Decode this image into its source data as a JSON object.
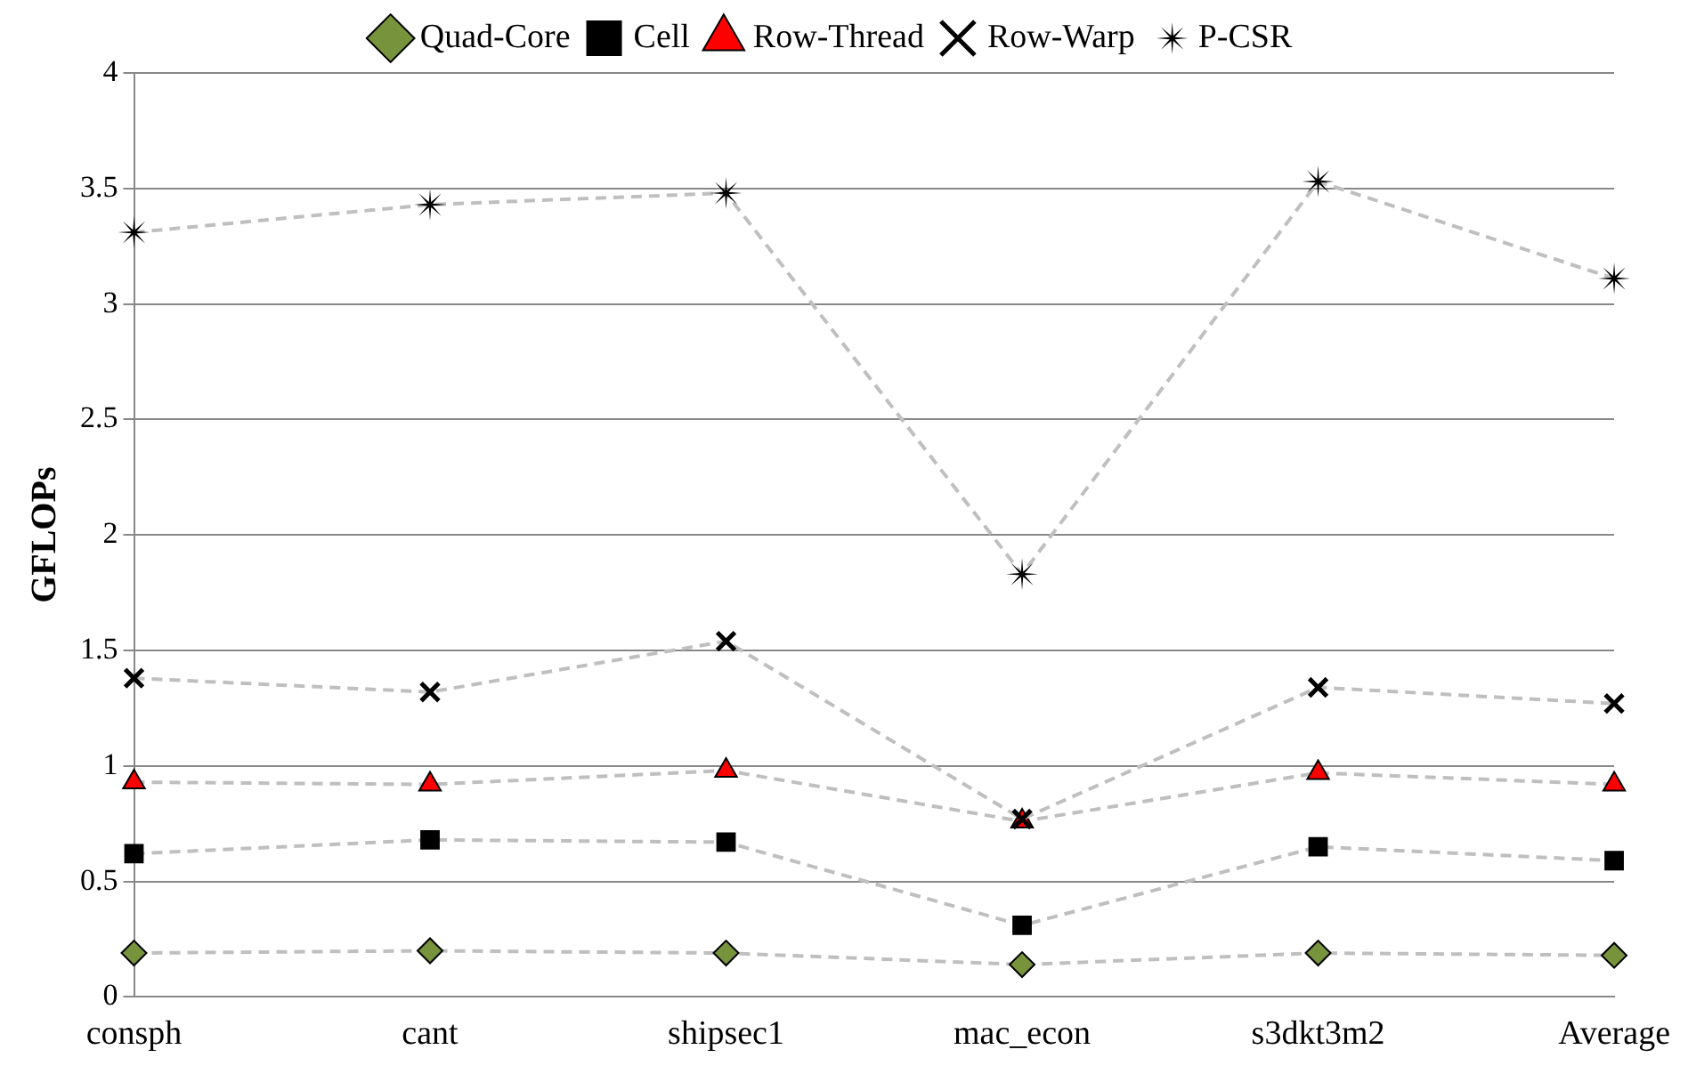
{
  "chart_data": {
    "type": "line",
    "ylabel": "GFLOPs",
    "categories": [
      "consph",
      "cant",
      "shipsec1",
      "mac_econ",
      "s3dkt3m2",
      "Average"
    ],
    "series": [
      {
        "name": "Quad-Core",
        "color": "#77933c",
        "marker": "diamond",
        "values": [
          0.19,
          0.2,
          0.19,
          0.14,
          0.19,
          0.18
        ]
      },
      {
        "name": "Cell",
        "color": "#000000",
        "marker": "square",
        "values": [
          0.62,
          0.68,
          0.67,
          0.31,
          0.65,
          0.59
        ]
      },
      {
        "name": "Row-Thread",
        "color": "#ff0000",
        "marker": "triangle",
        "values": [
          0.93,
          0.92,
          0.98,
          0.76,
          0.97,
          0.92
        ]
      },
      {
        "name": "Row-Warp",
        "color": "#000000",
        "marker": "cross",
        "values": [
          1.38,
          1.32,
          1.54,
          0.77,
          1.34,
          1.27
        ]
      },
      {
        "name": "P-CSR",
        "color": "#000000",
        "marker": "star",
        "values": [
          3.31,
          3.43,
          3.48,
          1.83,
          3.53,
          3.11
        ]
      }
    ],
    "ylim": [
      0,
      4
    ],
    "yticks": [
      0,
      0.5,
      1,
      1.5,
      2,
      2.5,
      3,
      3.5,
      4
    ],
    "grid": "y",
    "legend": "top",
    "line_style": "dashed"
  }
}
